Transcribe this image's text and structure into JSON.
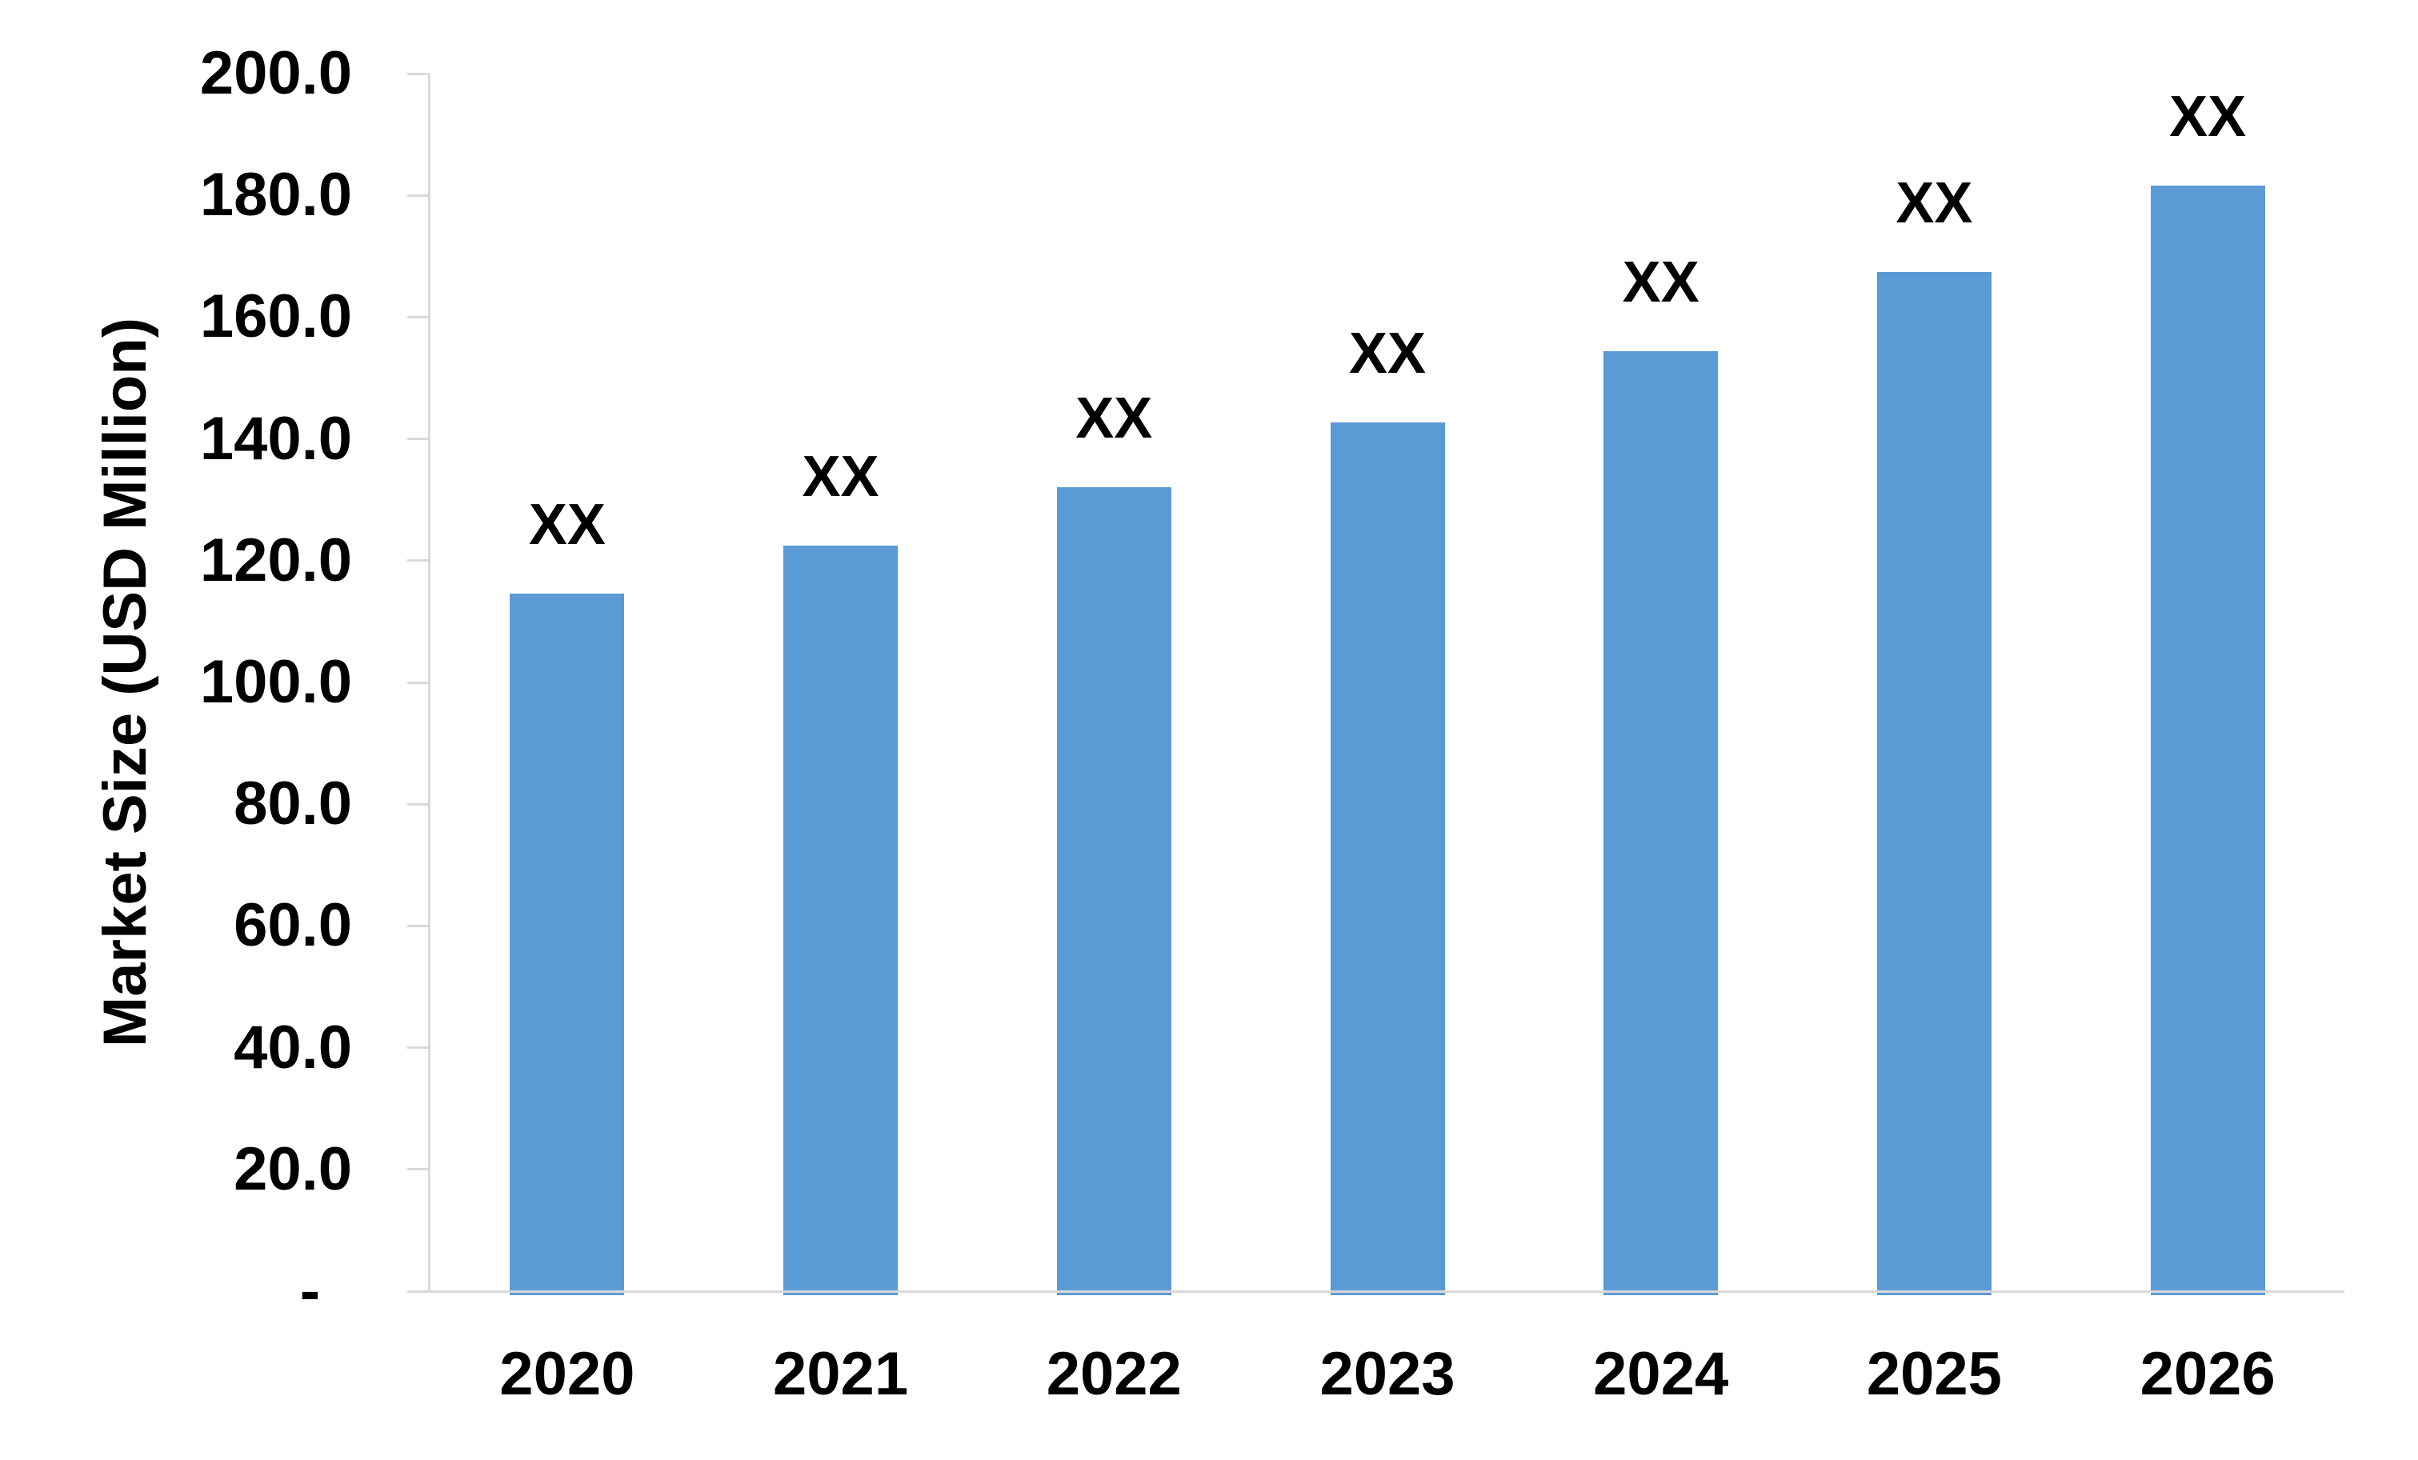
{
  "page": {
    "background": "#ffffff"
  },
  "chart_data": {
    "type": "bar",
    "title": "",
    "xlabel": "",
    "ylabel": "Market Size (USD Million)",
    "categories": [
      "2020",
      "2021",
      "2022",
      "2023",
      "2024",
      "2025",
      "2026"
    ],
    "series": [
      {
        "name": "Market Size",
        "values": [
          114.6,
          122.5,
          132.0,
          142.7,
          154.4,
          167.4,
          181.6
        ],
        "data_labels": [
          "XX",
          "XX",
          "XX",
          "XX",
          "XX",
          "XX",
          "XX"
        ],
        "color": "#5B9BD5"
      }
    ],
    "ylim": [
      0,
      200
    ],
    "y_tick_interval": 20,
    "y_ticks": [
      {
        "value": 200,
        "label": "200.0"
      },
      {
        "value": 180,
        "label": "180.0"
      },
      {
        "value": 160,
        "label": "160.0"
      },
      {
        "value": 140,
        "label": "140.0"
      },
      {
        "value": 120,
        "label": "120.0"
      },
      {
        "value": 100,
        "label": "100.0"
      },
      {
        "value": 80,
        "label": "80.0"
      },
      {
        "value": 60,
        "label": "60.0"
      },
      {
        "value": 40,
        "label": "40.0"
      },
      {
        "value": 20,
        "label": "20.0"
      },
      {
        "value": 0,
        "label": "-"
      }
    ],
    "grid": false,
    "legend": "none",
    "colors": {
      "bar": "#5B9BD5",
      "axis": "#D9D9D9",
      "text": "#000000"
    }
  }
}
